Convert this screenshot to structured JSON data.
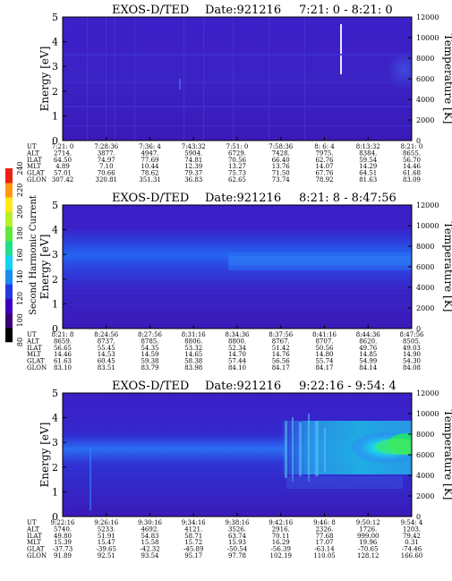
{
  "colorbar": {
    "label": "Second Harmonic Current",
    "ticks": [
      "80",
      "100",
      "120",
      "140",
      "160",
      "180",
      "200",
      "220",
      "240"
    ],
    "colors": [
      "#000000",
      "#3a0078",
      "#3c00c0",
      "#2a36e6",
      "#1a8cf0",
      "#10d4f0",
      "#22e08a",
      "#5fe83c",
      "#b8f028",
      "#ffe81a",
      "#ff9a10",
      "#f02010"
    ]
  },
  "chart_data": [
    {
      "type": "heatmap",
      "title": "EXOS-D/TED",
      "date_label": "Date:921216",
      "time_range": "7:21: 0 - 8:21: 0",
      "ylabel": "Energy [eV]",
      "ylabel_right": "Temperature [K]",
      "ylim": [
        0,
        5
      ],
      "ylim_right": [
        0,
        12000
      ],
      "yticks": [
        "0",
        "1",
        "2",
        "3",
        "4",
        "5"
      ],
      "yticks_right": [
        "0",
        "2000",
        "4000",
        "6000",
        "8000",
        "10000",
        "12000"
      ],
      "row_labels": [
        "UT",
        "ALT",
        "ILAT",
        "MLT",
        "GLAT",
        "GLON"
      ],
      "columns": [
        [
          "7:21: 0",
          "2714.",
          "64.50",
          "4.89",
          "57.01",
          "307.42"
        ],
        [
          "7:28:36",
          "3877.",
          "74.97",
          "7.10",
          "70.66",
          "320.81"
        ],
        [
          "7:36: 4",
          "4947.",
          "77.69",
          "10.44",
          "78.62",
          "351.31"
        ],
        [
          "7:43:32",
          "5904.",
          "74.81",
          "12.39",
          "79.37",
          "36.83"
        ],
        [
          "7:51: 0",
          "6729.",
          "70.56",
          "13.27",
          "75.73",
          "62.65"
        ],
        [
          "7:58:36",
          "7428.",
          "66.40",
          "13.76",
          "71.50",
          "73.74"
        ],
        [
          "8: 6: 4",
          "7975.",
          "62.76",
          "14.07",
          "67.76",
          "78.92"
        ],
        [
          "8:13:32",
          "8384.",
          "59.54",
          "14.29",
          "64.51",
          "81.63"
        ],
        [
          "8:21: 0",
          "8655.",
          "56.70",
          "14.46",
          "61.68",
          "83.09"
        ]
      ]
    },
    {
      "type": "heatmap",
      "title": "EXOS-D/TED",
      "date_label": "Date:921216",
      "time_range": "8:21: 8 - 8:47:56",
      "ylabel": "Energy [eV]",
      "ylabel_right": "Temperature [K]",
      "ylim": [
        0,
        5
      ],
      "ylim_right": [
        0,
        12000
      ],
      "yticks": [
        "0",
        "1",
        "2",
        "3",
        "4",
        "5"
      ],
      "yticks_right": [
        "0",
        "2000",
        "4000",
        "6000",
        "8000",
        "10000",
        "12000"
      ],
      "row_labels": [
        "UT",
        "ALT",
        "ILAT",
        "MLT",
        "GLAT",
        "GLON"
      ],
      "columns": [
        [
          "8:21: 8",
          "8659.",
          "56.65",
          "14.46",
          "61.63",
          "83.10"
        ],
        [
          "8:24:56",
          "8737.",
          "55.45",
          "14.53",
          "60.45",
          "83.51"
        ],
        [
          "8:27:56",
          "8785.",
          "54.35",
          "14.59",
          "59.38",
          "83.79"
        ],
        [
          "8:31:16",
          "8806.",
          "53.32",
          "14.65",
          "58.38",
          "83.98"
        ],
        [
          "8:34:36",
          "8800.",
          "52.34",
          "14.70",
          "57.44",
          "84.10"
        ],
        [
          "8:37:56",
          "8767.",
          "51.42",
          "14.76",
          "56.56",
          "84.17"
        ],
        [
          "8:41:16",
          "8707.",
          "50.56",
          "14.80",
          "55.74",
          "84.17"
        ],
        [
          "8:44:36",
          "8620.",
          "49.76",
          "14.85",
          "54.99",
          "84.14"
        ],
        [
          "8:47:56",
          "8505.",
          "49.03",
          "14.90",
          "54.30",
          "84.08"
        ]
      ]
    },
    {
      "type": "heatmap",
      "title": "EXOS-D/TED",
      "date_label": "Date:921216",
      "time_range": "9:22:16 - 9:54: 4",
      "ylabel": "Energy [eV]",
      "ylabel_right": "Temperature [K]",
      "ylim": [
        0,
        5
      ],
      "ylim_right": [
        0,
        12000
      ],
      "yticks": [
        "0",
        "1",
        "2",
        "3",
        "4",
        "5"
      ],
      "yticks_right": [
        "0",
        "2000",
        "4000",
        "6000",
        "8000",
        "10000",
        "12000"
      ],
      "row_labels": [
        "UT",
        "ALT",
        "ILAT",
        "MLT",
        "GLAT",
        "GLON"
      ],
      "columns": [
        [
          "9:22:16",
          "5740.",
          "49.80",
          "15.39",
          "-37.73",
          "91.89"
        ],
        [
          "9:26:16",
          "5233.",
          "51.91",
          "15.47",
          "-39.65",
          "92.51"
        ],
        [
          "9:30:16",
          "4692.",
          "54.83",
          "15.58",
          "-42.32",
          "93.54"
        ],
        [
          "9:34:16",
          "4121.",
          "58.71",
          "15.72",
          "-45.89",
          "95.17"
        ],
        [
          "9:38:16",
          "3526.",
          "63.74",
          "15.93",
          "-50.54",
          "97.78"
        ],
        [
          "9:42:16",
          "2916.",
          "70.11",
          "16.29",
          "-56.39",
          "102.19"
        ],
        [
          "9:46: 8",
          "2326.",
          "77.68",
          "17.07",
          "-63.14",
          "110.05"
        ],
        [
          "9:50:12",
          "1726.",
          "999.00",
          "19.96",
          "-70.65",
          "128.12"
        ],
        [
          "9:54: 4",
          "1203.",
          "79.42",
          "0.31",
          "-74.46",
          "166.60"
        ]
      ]
    }
  ]
}
